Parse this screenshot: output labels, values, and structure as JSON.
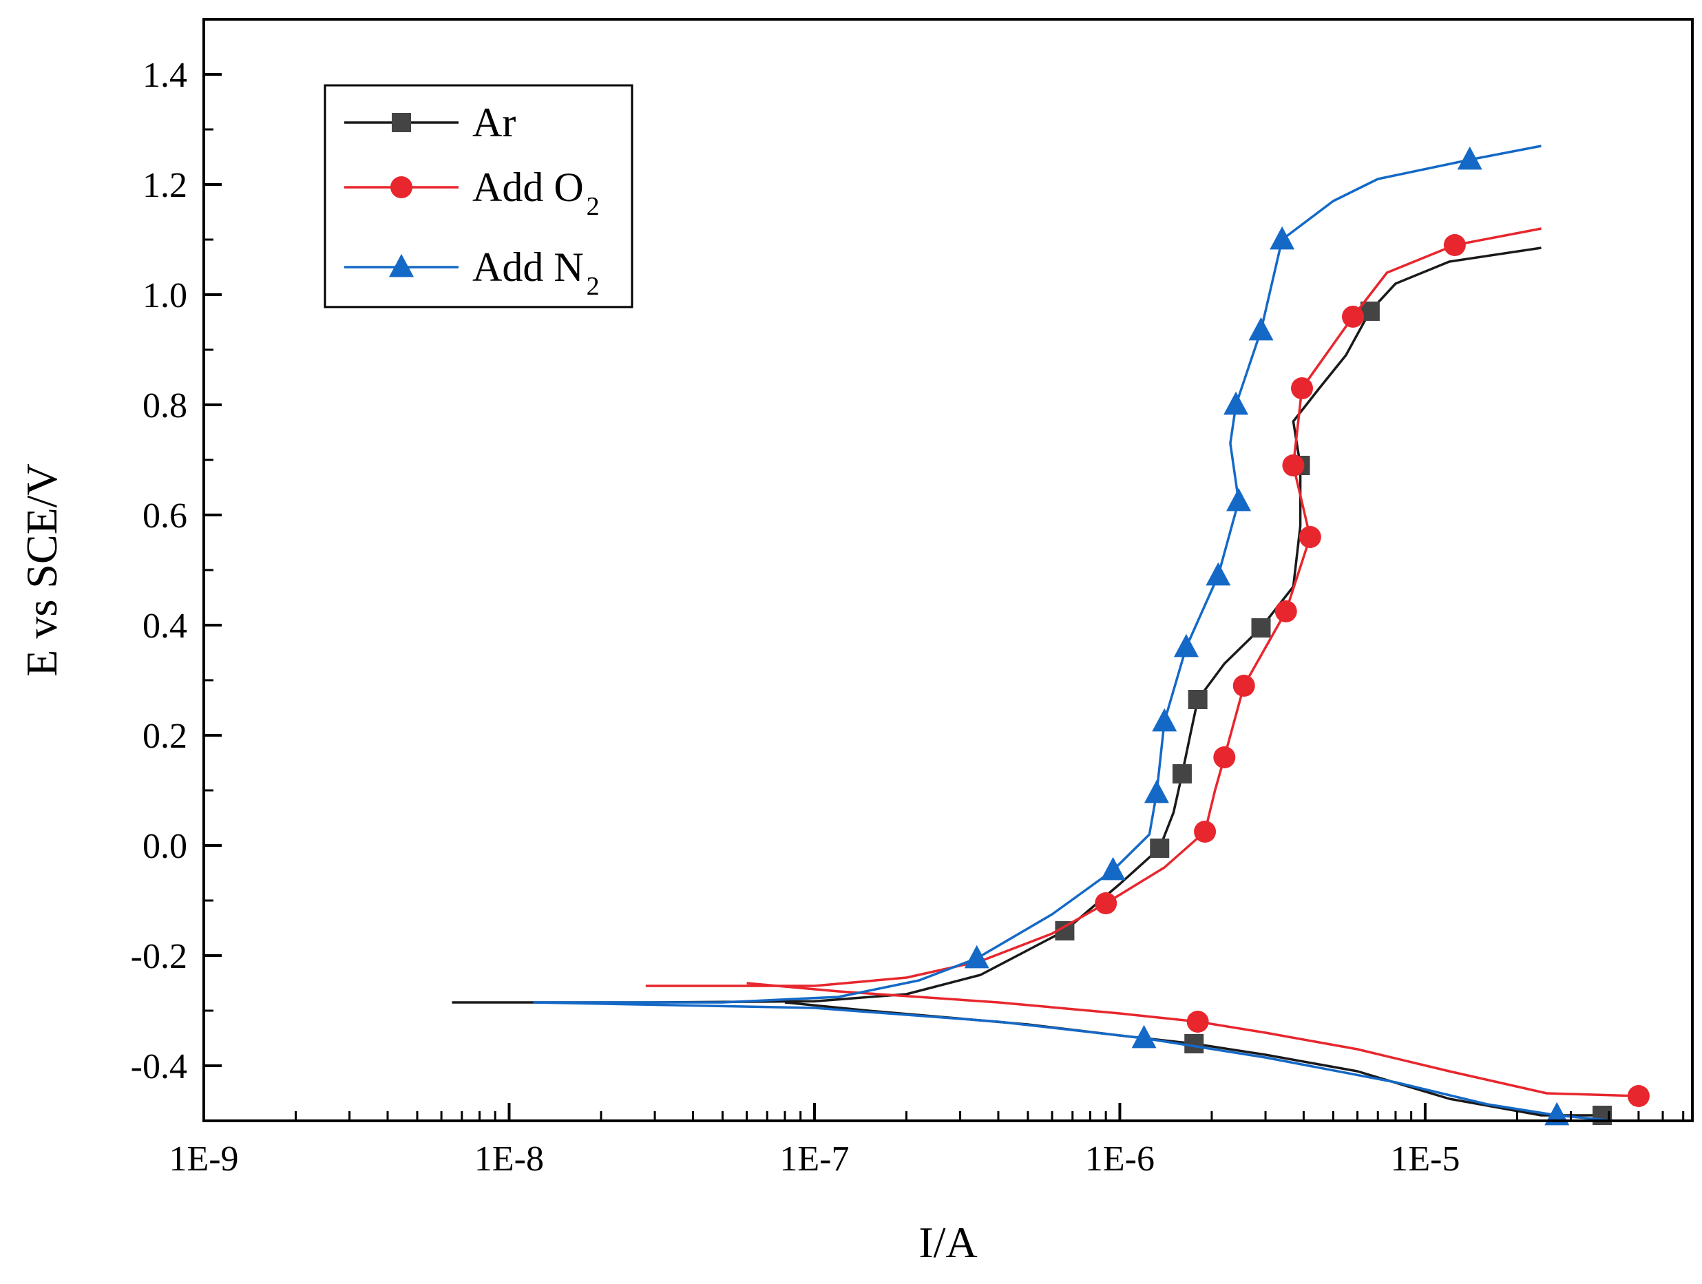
{
  "chart_data": {
    "type": "line",
    "title": "",
    "xlabel": "I/A",
    "ylabel": "E vs SCE/V",
    "xscale": "log",
    "xlim": [
      1e-09,
      7.5e-05
    ],
    "ylim": [
      -0.5,
      1.5
    ],
    "grid": false,
    "legend_position": "top-left",
    "x_tick_labels": [
      "1E-9",
      "1E-8",
      "1E-7",
      "1E-6",
      "1E-5"
    ],
    "x_tick_values": [
      1e-09,
      1e-08,
      1e-07,
      1e-06,
      1e-05
    ],
    "y_tick_labels": [
      "-0.4",
      "-0.2",
      "0.0",
      "0.2",
      "0.4",
      "0.6",
      "0.8",
      "1.0",
      "1.2",
      "1.4"
    ],
    "y_tick_values": [
      -0.4,
      -0.2,
      0.0,
      0.2,
      0.4,
      0.6,
      0.8,
      1.0,
      1.2,
      1.4
    ],
    "series": [
      {
        "name": "Ar",
        "legend_label": "Ar",
        "legend_subscript": "",
        "color": "#1a1a1a",
        "marker_color": "#444444",
        "marker": "square",
        "anodic": [
          [
            6.5e-09,
            -0.285
          ],
          [
            3e-08,
            -0.285
          ],
          [
            1e-07,
            -0.283
          ],
          [
            2e-07,
            -0.27
          ],
          [
            3.5e-07,
            -0.235
          ],
          [
            6.6e-07,
            -0.155
          ],
          [
            1e-06,
            -0.07
          ],
          [
            1.35e-06,
            -0.005
          ],
          [
            1.5e-06,
            0.06
          ],
          [
            1.6e-06,
            0.13
          ],
          [
            1.7e-06,
            0.2
          ],
          [
            1.8e-06,
            0.265
          ],
          [
            2.2e-06,
            0.33
          ],
          [
            2.9e-06,
            0.395
          ],
          [
            3.7e-06,
            0.47
          ],
          [
            3.9e-06,
            0.58
          ],
          [
            3.9e-06,
            0.69
          ],
          [
            3.7e-06,
            0.77
          ],
          [
            4.5e-06,
            0.83
          ],
          [
            5.5e-06,
            0.89
          ],
          [
            6.6e-06,
            0.97
          ],
          [
            8e-06,
            1.02
          ],
          [
            1.2e-05,
            1.06
          ],
          [
            2.4e-05,
            1.085
          ]
        ],
        "cathodic": [
          [
            8e-08,
            -0.285
          ],
          [
            1.5e-07,
            -0.3
          ],
          [
            5e-07,
            -0.325
          ],
          [
            1e-06,
            -0.345
          ],
          [
            1.75e-06,
            -0.36
          ],
          [
            3e-06,
            -0.38
          ],
          [
            6e-06,
            -0.41
          ],
          [
            1.2e-05,
            -0.46
          ],
          [
            2.4e-05,
            -0.49
          ],
          [
            3.8e-05,
            -0.49
          ]
        ],
        "markers": [
          [
            6.6e-07,
            -0.155
          ],
          [
            1.35e-06,
            -0.005
          ],
          [
            1.6e-06,
            0.13
          ],
          [
            1.8e-06,
            0.265
          ],
          [
            2.9e-06,
            0.395
          ],
          [
            3.9e-06,
            0.69
          ],
          [
            6.6e-06,
            0.97
          ],
          [
            1.75e-06,
            -0.36
          ],
          [
            3.8e-05,
            -0.49
          ]
        ]
      },
      {
        "name": "Add O2",
        "legend_label": "Add O",
        "legend_subscript": "2",
        "color": "#e8262d",
        "marker_color": "#e8262d",
        "marker": "circle",
        "anodic": [
          [
            2.8e-08,
            -0.255
          ],
          [
            1e-07,
            -0.255
          ],
          [
            2e-07,
            -0.24
          ],
          [
            3.5e-07,
            -0.21
          ],
          [
            6e-07,
            -0.16
          ],
          [
            9e-07,
            -0.105
          ],
          [
            1.4e-06,
            -0.04
          ],
          [
            1.9e-06,
            0.025
          ],
          [
            2.05e-06,
            0.1
          ],
          [
            2.2e-06,
            0.16
          ],
          [
            2.55e-06,
            0.29
          ],
          [
            3.5e-06,
            0.425
          ],
          [
            4.2e-06,
            0.56
          ],
          [
            3.7e-06,
            0.69
          ],
          [
            3.95e-06,
            0.83
          ],
          [
            5.8e-06,
            0.96
          ],
          [
            7.5e-06,
            1.04
          ],
          [
            1.25e-05,
            1.09
          ],
          [
            2.4e-05,
            1.12
          ]
        ],
        "cathodic": [
          [
            6e-08,
            -0.25
          ],
          [
            1.2e-07,
            -0.265
          ],
          [
            4e-07,
            -0.285
          ],
          [
            1e-06,
            -0.305
          ],
          [
            1.8e-06,
            -0.32
          ],
          [
            3e-06,
            -0.34
          ],
          [
            6e-06,
            -0.37
          ],
          [
            1.2e-05,
            -0.41
          ],
          [
            2.5e-05,
            -0.45
          ],
          [
            5e-05,
            -0.455
          ]
        ],
        "markers": [
          [
            9e-07,
            -0.105
          ],
          [
            1.9e-06,
            0.025
          ],
          [
            2.2e-06,
            0.16
          ],
          [
            2.55e-06,
            0.29
          ],
          [
            3.5e-06,
            0.425
          ],
          [
            4.2e-06,
            0.56
          ],
          [
            3.7e-06,
            0.69
          ],
          [
            3.95e-06,
            0.83
          ],
          [
            5.8e-06,
            0.96
          ],
          [
            1.25e-05,
            1.09
          ],
          [
            1.8e-06,
            -0.32
          ],
          [
            5e-05,
            -0.455
          ]
        ]
      },
      {
        "name": "Add N2",
        "legend_label": "Add N",
        "legend_subscript": "2",
        "color": "#1469c7",
        "marker_color": "#1469c7",
        "marker": "triangle",
        "anodic": [
          [
            1.2e-08,
            -0.285
          ],
          [
            5e-08,
            -0.285
          ],
          [
            1.2e-07,
            -0.275
          ],
          [
            2.2e-07,
            -0.245
          ],
          [
            3.4e-07,
            -0.205
          ],
          [
            6e-07,
            -0.125
          ],
          [
            9.5e-07,
            -0.045
          ],
          [
            1.25e-06,
            0.02
          ],
          [
            1.32e-06,
            0.095
          ],
          [
            1.4e-06,
            0.225
          ],
          [
            1.65e-06,
            0.36
          ],
          [
            2.1e-06,
            0.49
          ],
          [
            2.45e-06,
            0.625
          ],
          [
            2.3e-06,
            0.73
          ],
          [
            2.4e-06,
            0.8
          ],
          [
            2.9e-06,
            0.935
          ],
          [
            3.4e-06,
            1.1
          ],
          [
            5e-06,
            1.17
          ],
          [
            7e-06,
            1.21
          ],
          [
            1.4e-05,
            1.245
          ],
          [
            2.4e-05,
            1.27
          ]
        ],
        "cathodic": [
          [
            1.2e-08,
            -0.285
          ],
          [
            1e-07,
            -0.295
          ],
          [
            4e-07,
            -0.32
          ],
          [
            1.2e-06,
            -0.35
          ],
          [
            3e-06,
            -0.385
          ],
          [
            8e-06,
            -0.43
          ],
          [
            1.6e-05,
            -0.47
          ],
          [
            2.7e-05,
            -0.49
          ],
          [
            4.2e-05,
            -0.5
          ]
        ],
        "markers": [
          [
            3.4e-07,
            -0.205
          ],
          [
            9.5e-07,
            -0.045
          ],
          [
            1.32e-06,
            0.095
          ],
          [
            1.4e-06,
            0.225
          ],
          [
            1.65e-06,
            0.36
          ],
          [
            2.1e-06,
            0.49
          ],
          [
            2.45e-06,
            0.625
          ],
          [
            2.4e-06,
            0.8
          ],
          [
            2.9e-06,
            0.935
          ],
          [
            3.4e-06,
            1.1
          ],
          [
            1.4e-05,
            1.245
          ],
          [
            1.2e-06,
            -0.35
          ],
          [
            2.7e-05,
            -0.49
          ]
        ]
      }
    ]
  }
}
